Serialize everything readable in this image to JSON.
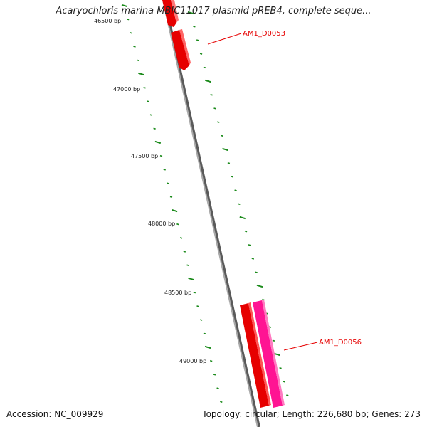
{
  "title": "Acaryochloris marina MBIC11017 plasmid pREB4, complete seque...",
  "accession_text": "Accession: NC_009929",
  "summary_text": "Topology: circular; Length: 226,680 bp; Genes: 273",
  "colors": {
    "backbone": "#8a8a8a",
    "gene_forward": "#e60000",
    "gene_reverse_pink": "#ff1493",
    "tick": "#1a8a1a",
    "label": "#e60000"
  },
  "scale_labels": [
    "46500 bp",
    "47000 bp",
    "47500 bp",
    "48000 bp",
    "48500 bp",
    "49000 bp"
  ],
  "genes": [
    {
      "name": "",
      "color": "#e60000"
    },
    {
      "name": "AM1_D0053",
      "color": "#e60000"
    },
    {
      "name": "AM1_D0056",
      "color": "#e60000"
    },
    {
      "name": "",
      "color": "#ff1493"
    }
  ]
}
